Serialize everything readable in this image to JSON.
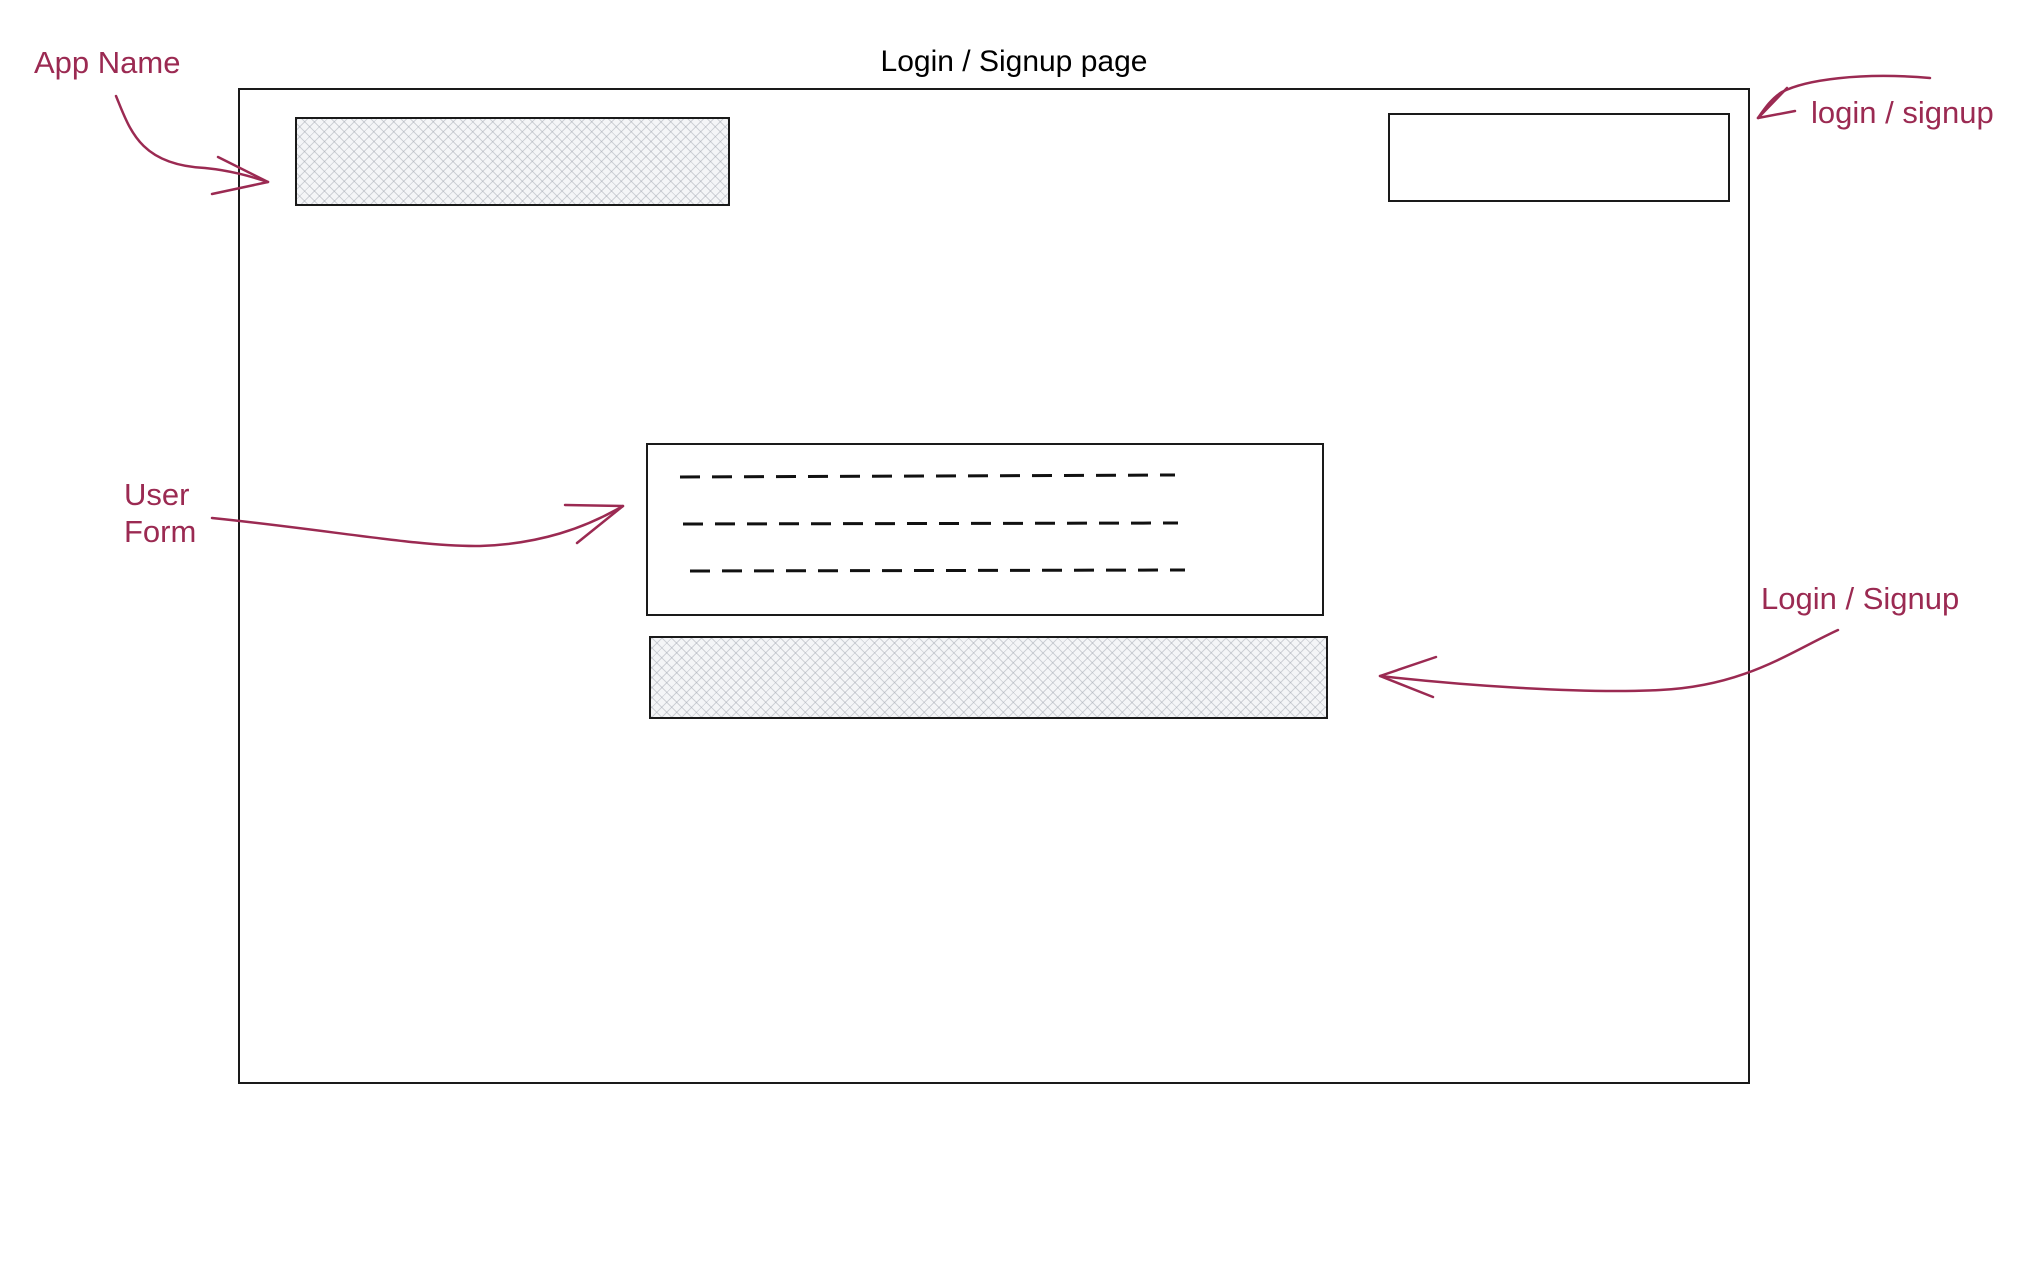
{
  "title": "Login / Signup page",
  "colors": {
    "annotation": "#9b2a52",
    "outline": "#1a1a1a",
    "hatch": "#a0a5af"
  },
  "annotations": {
    "app_name": "App Name",
    "auth_toggle": "login / signup",
    "user_form": "User Form",
    "submit": "Login / Signup"
  }
}
